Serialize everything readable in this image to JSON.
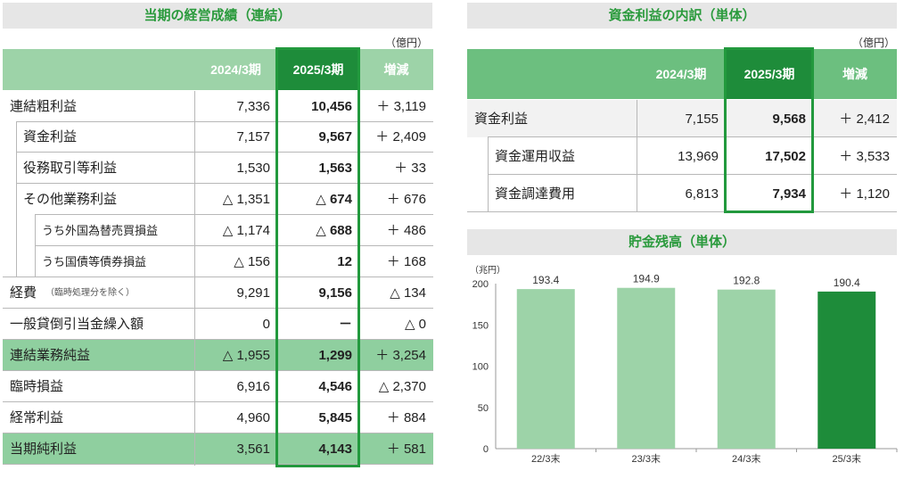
{
  "left": {
    "title": "当期の経営成績（連結）",
    "unit": "（億円）",
    "headers": [
      "2024/3期",
      "2025/3期",
      "増減"
    ],
    "rows": [
      {
        "label": "連結粗利益",
        "v1": "7,336",
        "v2": "10,456",
        "diff": "＋ 3,119"
      },
      {
        "label": "資金利益",
        "v1": "7,157",
        "v2": "9,567",
        "diff": "＋ 2,409"
      },
      {
        "label": "役務取引等利益",
        "v1": "1,530",
        "v2": "1,563",
        "diff": "＋ 33"
      },
      {
        "label": "その他業務利益",
        "v1": "△ 1,351",
        "v2": "△ 674",
        "diff": "＋ 676"
      },
      {
        "label": "うち外国為替売買損益",
        "v1": "△ 1,174",
        "v2": "△ 688",
        "diff": "＋ 486"
      },
      {
        "label": "うち国債等債券損益",
        "v1": "△ 156",
        "v2": "12",
        "diff": "＋ 168"
      },
      {
        "label": "経費",
        "note": "（臨時処理分を除く）",
        "v1": "9,291",
        "v2": "9,156",
        "diff": "△ 134"
      },
      {
        "label": "一般貸倒引当金繰入額",
        "v1": "0",
        "v2": "－",
        "diff": "△ 0"
      },
      {
        "label": "連結業務純益",
        "v1": "△ 1,955",
        "v2": "1,299",
        "diff": "＋ 3,254"
      },
      {
        "label": "臨時損益",
        "v1": "6,916",
        "v2": "4,546",
        "diff": "△ 2,370"
      },
      {
        "label": "経常利益",
        "v1": "4,960",
        "v2": "5,845",
        "diff": "＋ 884"
      },
      {
        "label": "当期純利益",
        "v1": "3,561",
        "v2": "4,143",
        "diff": "＋ 581"
      }
    ]
  },
  "right": {
    "title": "資金利益の内訳（単体）",
    "unit": "（億円）",
    "headers": [
      "2024/3期",
      "2025/3期",
      "増減"
    ],
    "rows": [
      {
        "label": "資金利益",
        "v1": "7,155",
        "v2": "9,568",
        "diff": "＋ 2,412"
      },
      {
        "label": "資金運用収益",
        "v1": "13,969",
        "v2": "17,502",
        "diff": "＋ 3,533"
      },
      {
        "label": "資金調達費用",
        "v1": "6,813",
        "v2": "7,934",
        "diff": "＋ 1,120"
      }
    ]
  },
  "chart_data": {
    "type": "bar",
    "title": "貯金残高（単体）",
    "ylabel": "（兆円）",
    "categories": [
      "22/3末",
      "23/3末",
      "24/3末",
      "25/3末"
    ],
    "values": [
      193.4,
      194.9,
      192.8,
      190.4
    ],
    "ylim": [
      0,
      200
    ],
    "yticks": [
      0,
      50,
      100,
      150,
      200
    ],
    "colors": [
      "#9dd3a8",
      "#9dd3a8",
      "#9dd3a8",
      "#1e8c3a"
    ],
    "grid": false
  }
}
